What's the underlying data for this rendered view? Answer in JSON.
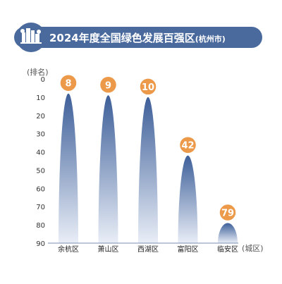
{
  "colors": {
    "banner": "#4a6a9e",
    "peak_top": "#3d5f99",
    "peak_bottom": "#e9eef7",
    "badge_fill": "#ec9a4a",
    "badge_stroke": "#ffffff",
    "axis": "#7a8db0"
  },
  "chart_data": {
    "type": "bar",
    "title": "2024年度全国绿色发展百强区",
    "subtitle": "(杭州市)",
    "ylabel": "(排名)",
    "xlabel": "(城区)",
    "y_inverted": true,
    "ylim": [
      0,
      90
    ],
    "yticks": [
      0,
      10,
      20,
      30,
      40,
      50,
      60,
      70,
      80,
      90
    ],
    "categories": [
      "余杭区",
      "萧山区",
      "西湖区",
      "富阳区",
      "临安区"
    ],
    "values": [
      8,
      9,
      10,
      42,
      79
    ]
  }
}
